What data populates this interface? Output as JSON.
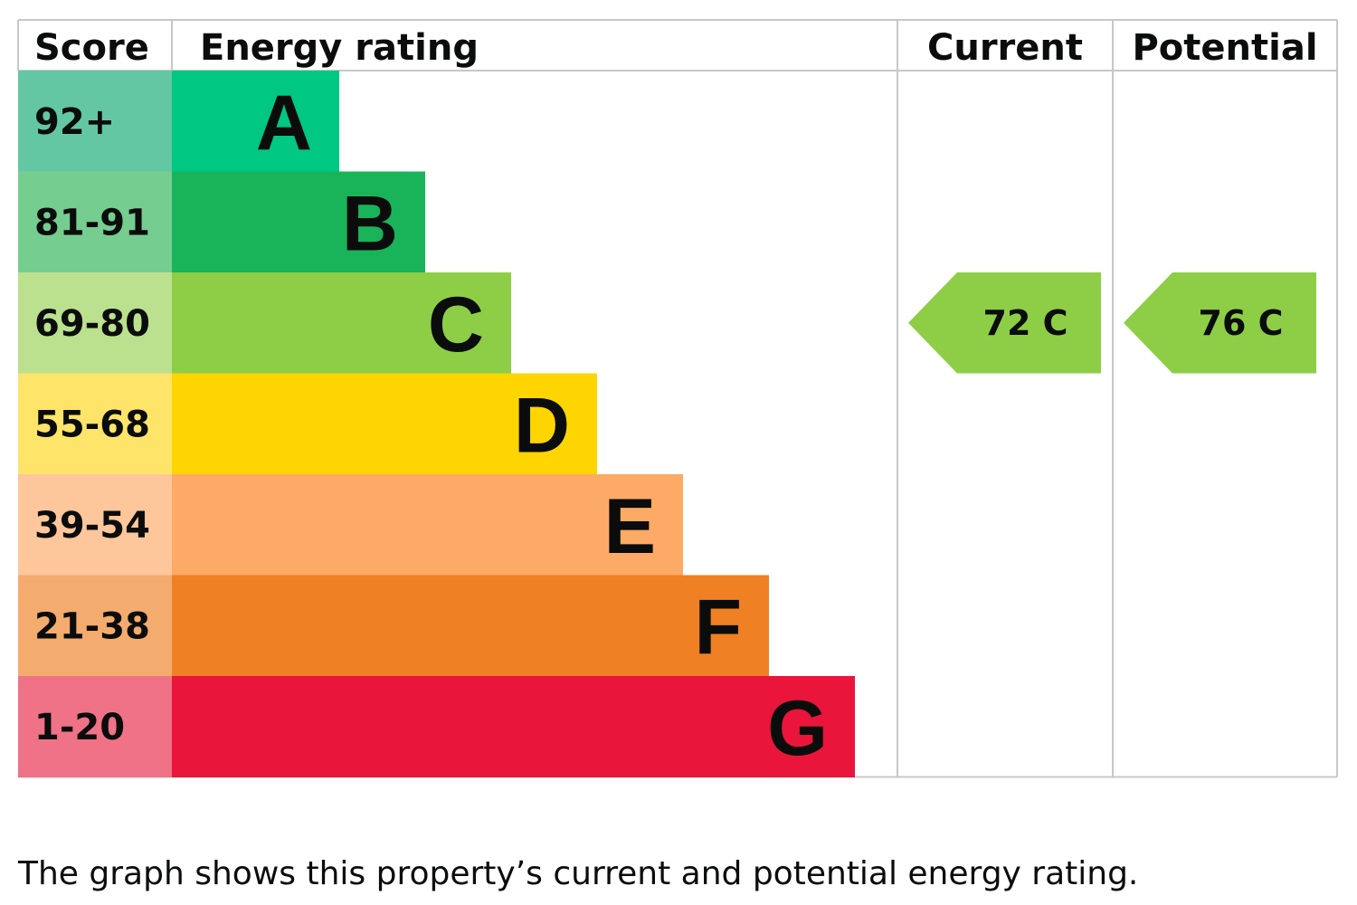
{
  "chart_data": {
    "type": "bar",
    "headers": {
      "score": "Score",
      "rating": "Energy rating",
      "current": "Current",
      "potential": "Potential"
    },
    "bands": [
      {
        "letter": "A",
        "range": "92+",
        "color": "#00c781",
        "score_color": "#64c7a3"
      },
      {
        "letter": "B",
        "range": "81-91",
        "color": "#19b459",
        "score_color": "#75cd8f"
      },
      {
        "letter": "C",
        "range": "69-80",
        "color": "#8dce46",
        "score_color": "#bbe18f"
      },
      {
        "letter": "D",
        "range": "55-68",
        "color": "#ffd500",
        "score_color": "#ffe46a"
      },
      {
        "letter": "E",
        "range": "39-54",
        "color": "#fcaa65",
        "score_color": "#fdc79b"
      },
      {
        "letter": "F",
        "range": "21-38",
        "color": "#ef8023",
        "score_color": "#f4ab6e"
      },
      {
        "letter": "G",
        "range": "1-20",
        "color": "#e9153b",
        "score_color": "#f07287"
      }
    ],
    "current": {
      "score": 72,
      "band": "C",
      "label": "72  C"
    },
    "potential": {
      "score": 76,
      "band": "C",
      "label": "76  C"
    }
  },
  "caption": "The graph shows this property’s current and potential energy rating."
}
